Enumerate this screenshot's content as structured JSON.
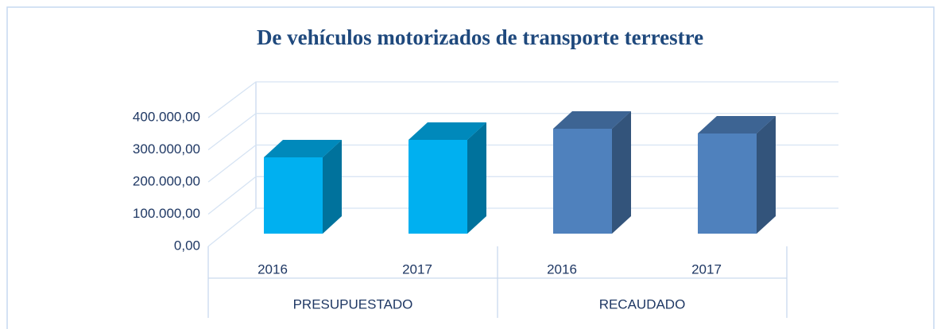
{
  "chart_data": {
    "type": "bar3d",
    "title": "De vehículos motorizados de transporte terrestre",
    "categories": [
      "2016",
      "2017",
      "2016",
      "2017"
    ],
    "groups": [
      "PRESUPUESTADO",
      "RECAUDADO"
    ],
    "values": [
      240000,
      295000,
      330000,
      315000
    ],
    "colors": [
      "#00b0f0",
      "#00b0f0",
      "#4f81bd",
      "#4f81bd"
    ],
    "ylim": [
      0,
      400000
    ],
    "yticks": [
      {
        "value": 0,
        "label": "0,00"
      },
      {
        "value": 100000,
        "label": "100.000,00"
      },
      {
        "value": 200000,
        "label": "200.000,00"
      },
      {
        "value": 300000,
        "label": "300.000,00"
      },
      {
        "value": 400000,
        "label": "400.000,00"
      }
    ],
    "grid": true
  }
}
